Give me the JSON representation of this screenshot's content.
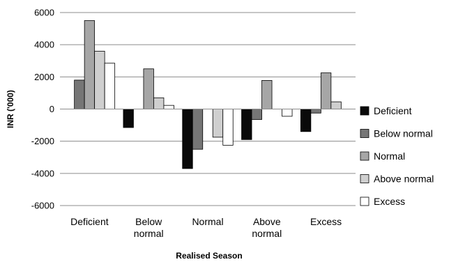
{
  "chart_data": {
    "type": "bar",
    "xlabel": "Realised Season",
    "ylabel": "INR ('000)",
    "ylim": [
      -6000,
      6000
    ],
    "ytick_step": 2000,
    "grid": true,
    "legend_position": "right",
    "categories": [
      [
        "Deficient"
      ],
      [
        "Below",
        "normal"
      ],
      [
        "Normal"
      ],
      [
        "Above",
        "normal"
      ],
      [
        "Excess"
      ]
    ],
    "series": [
      {
        "name": "Deficient",
        "color": "#0a0a0a",
        "values": [
          0,
          -1150,
          -3700,
          -1900,
          -1400
        ]
      },
      {
        "name": "Below normal",
        "color": "#767676",
        "values": [
          1800,
          0,
          -2500,
          -650,
          -250
        ]
      },
      {
        "name": "Normal",
        "color": "#a6a6a6",
        "values": [
          5500,
          2500,
          0,
          1780,
          2250
        ]
      },
      {
        "name": "Above normal",
        "color": "#cfcfcf",
        "values": [
          3600,
          700,
          -1750,
          0,
          450
        ]
      },
      {
        "name": "Excess",
        "color": "#ffffff",
        "values": [
          2850,
          230,
          -2250,
          -450,
          0
        ]
      }
    ]
  }
}
